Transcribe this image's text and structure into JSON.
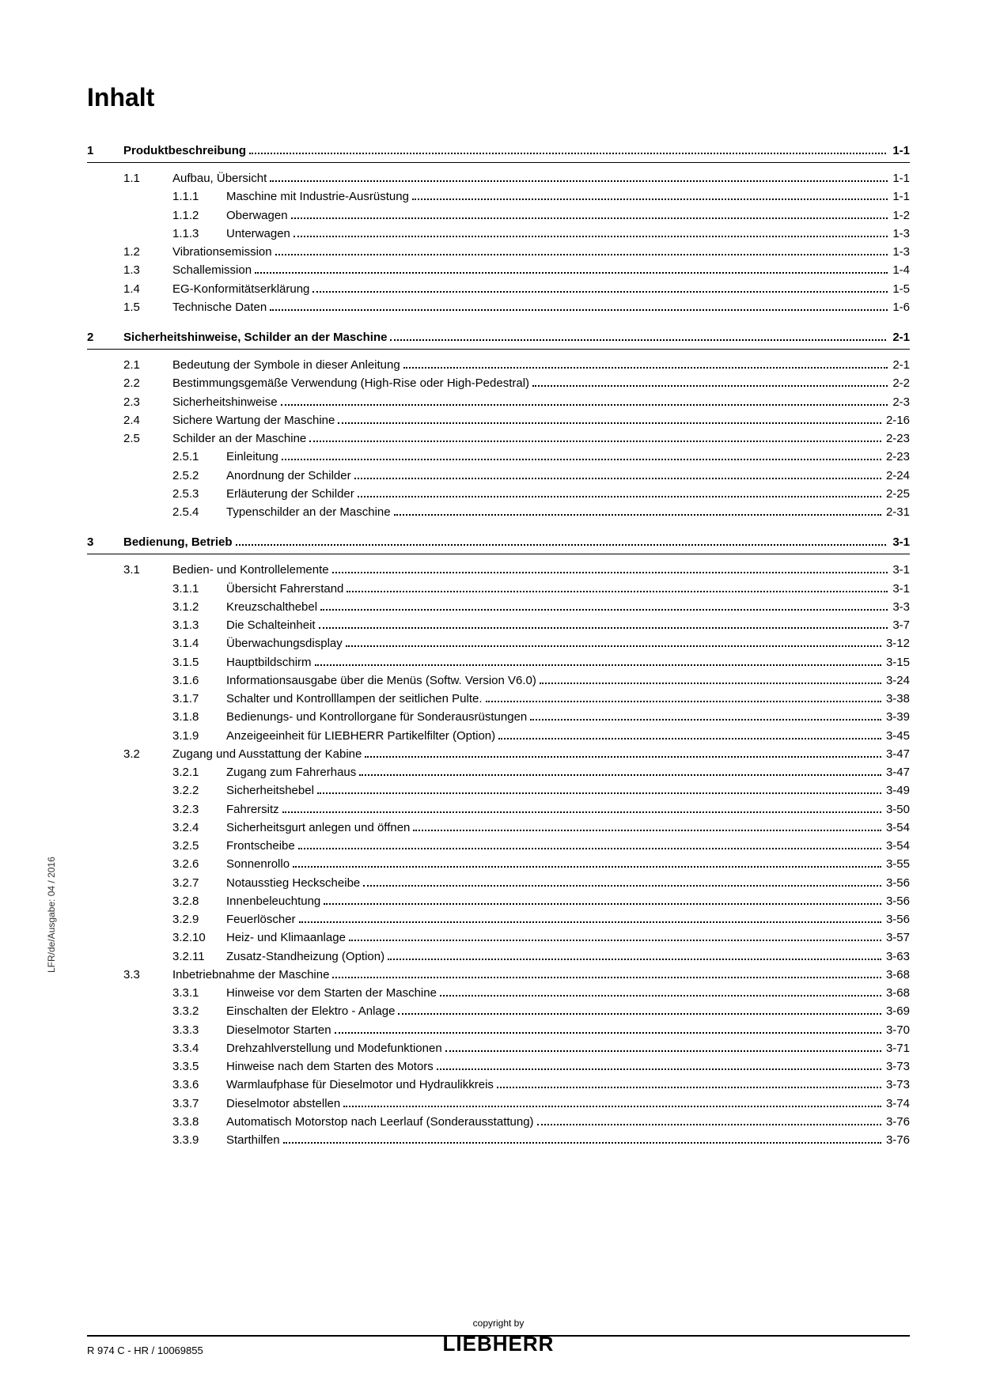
{
  "title": "Inhalt",
  "side_text": "LFR/de/Ausgabe: 04 / 2016",
  "footer": {
    "left": "R 974 C - HR / 10069855",
    "copyright": "copyright by",
    "brand": "LIEBHERR"
  },
  "chapters": [
    {
      "num": "1",
      "title": "Produktbeschreibung",
      "page": "1-1",
      "sections": [
        {
          "num": "1.1",
          "title": "Aufbau, Übersicht",
          "page": "1-1",
          "subs": [
            {
              "num": "1.1.1",
              "title": "Maschine mit Industrie-Ausrüstung",
              "page": "1-1"
            },
            {
              "num": "1.1.2",
              "title": "Oberwagen",
              "page": "1-2"
            },
            {
              "num": "1.1.3",
              "title": "Unterwagen",
              "page": "1-3"
            }
          ]
        },
        {
          "num": "1.2",
          "title": "Vibrationsemission",
          "page": "1-3",
          "subs": []
        },
        {
          "num": "1.3",
          "title": "Schallemission",
          "page": "1-4",
          "subs": []
        },
        {
          "num": "1.4",
          "title": "EG-Konformitätserklärung",
          "page": "1-5",
          "subs": []
        },
        {
          "num": "1.5",
          "title": "Technische Daten",
          "page": "1-6",
          "subs": []
        }
      ]
    },
    {
      "num": "2",
      "title": "Sicherheitshinweise, Schilder an der Maschine",
      "page": "2-1",
      "sections": [
        {
          "num": "2.1",
          "title": "Bedeutung der Symbole in dieser Anleitung",
          "page": "2-1",
          "subs": []
        },
        {
          "num": "2.2",
          "title": "Bestimmungsgemäße Verwendung (High-Rise oder High-Pedestral)",
          "page": "2-2",
          "subs": []
        },
        {
          "num": "2.3",
          "title": "Sicherheitshinweise",
          "page": "2-3",
          "subs": []
        },
        {
          "num": "2.4",
          "title": "Sichere Wartung der Maschine",
          "page": "2-16",
          "subs": []
        },
        {
          "num": "2.5",
          "title": "Schilder an der Maschine",
          "page": "2-23",
          "subs": [
            {
              "num": "2.5.1",
              "title": "Einleitung",
              "page": "2-23"
            },
            {
              "num": "2.5.2",
              "title": "Anordnung der Schilder",
              "page": "2-24"
            },
            {
              "num": "2.5.3",
              "title": "Erläuterung der Schilder",
              "page": "2-25"
            },
            {
              "num": "2.5.4",
              "title": "Typenschilder an der Maschine",
              "page": "2-31"
            }
          ]
        }
      ]
    },
    {
      "num": "3",
      "title": "Bedienung, Betrieb",
      "page": "3-1",
      "sections": [
        {
          "num": "3.1",
          "title": "Bedien- und Kontrollelemente",
          "page": "3-1",
          "subs": [
            {
              "num": "3.1.1",
              "title": "Übersicht Fahrerstand",
              "page": "3-1"
            },
            {
              "num": "3.1.2",
              "title": "Kreuzschalthebel",
              "page": "3-3"
            },
            {
              "num": "3.1.3",
              "title": "Die Schalteinheit",
              "page": "3-7"
            },
            {
              "num": "3.1.4",
              "title": "Überwachungsdisplay",
              "page": "3-12"
            },
            {
              "num": "3.1.5",
              "title": "Hauptbildschirm",
              "page": "3-15"
            },
            {
              "num": "3.1.6",
              "title": "Informationsausgabe über die Menüs (Softw. Version V6.0)",
              "page": "3-24"
            },
            {
              "num": "3.1.7",
              "title": "Schalter und Kontrolllampen der seitlichen Pulte.",
              "page": "3-38"
            },
            {
              "num": "3.1.8",
              "title": "Bedienungs- und Kontrollorgane für Sonderausrüstungen",
              "page": "3-39"
            },
            {
              "num": "3.1.9",
              "title": "Anzeigeeinheit für LIEBHERR Partikelfilter (Option)",
              "page": "3-45"
            }
          ]
        },
        {
          "num": "3.2",
          "title": "Zugang und Ausstattung der Kabine",
          "page": "3-47",
          "subs": [
            {
              "num": "3.2.1",
              "title": "Zugang zum Fahrerhaus",
              "page": "3-47"
            },
            {
              "num": "3.2.2",
              "title": "Sicherheitshebel",
              "page": "3-49"
            },
            {
              "num": "3.2.3",
              "title": "Fahrersitz",
              "page": "3-50"
            },
            {
              "num": "3.2.4",
              "title": "Sicherheitsgurt anlegen und öffnen",
              "page": "3-54"
            },
            {
              "num": "3.2.5",
              "title": "Frontscheibe",
              "page": "3-54"
            },
            {
              "num": "3.2.6",
              "title": "Sonnenrollo",
              "page": "3-55"
            },
            {
              "num": "3.2.7",
              "title": "Notausstieg Heckscheibe",
              "page": "3-56"
            },
            {
              "num": "3.2.8",
              "title": "Innenbeleuchtung",
              "page": "3-56"
            },
            {
              "num": "3.2.9",
              "title": "Feuerlöscher",
              "page": "3-56"
            },
            {
              "num": "3.2.10",
              "title": "Heiz- und Klimaanlage",
              "page": "3-57"
            },
            {
              "num": "3.2.11",
              "title": "Zusatz-Standheizung (Option)",
              "page": "3-63"
            }
          ]
        },
        {
          "num": "3.3",
          "title": "Inbetriebnahme der Maschine",
          "page": "3-68",
          "subs": [
            {
              "num": "3.3.1",
              "title": "Hinweise vor dem Starten der Maschine",
              "page": "3-68"
            },
            {
              "num": "3.3.2",
              "title": "Einschalten der Elektro - Anlage",
              "page": "3-69"
            },
            {
              "num": "3.3.3",
              "title": "Dieselmotor Starten",
              "page": "3-70"
            },
            {
              "num": "3.3.4",
              "title": "Drehzahlverstellung und Modefunktionen",
              "page": "3-71"
            },
            {
              "num": "3.3.5",
              "title": "Hinweise nach dem Starten des Motors",
              "page": "3-73"
            },
            {
              "num": "3.3.6",
              "title": "Warmlaufphase für Dieselmotor und Hydraulikkreis",
              "page": "3-73"
            },
            {
              "num": "3.3.7",
              "title": "Dieselmotor abstellen",
              "page": "3-74"
            },
            {
              "num": "3.3.8",
              "title": "Automatisch Motorstop nach Leerlauf (Sonderausstattung)",
              "page": "3-76"
            },
            {
              "num": "3.3.9",
              "title": "Starthilfen",
              "page": "3-76"
            }
          ]
        }
      ]
    }
  ]
}
